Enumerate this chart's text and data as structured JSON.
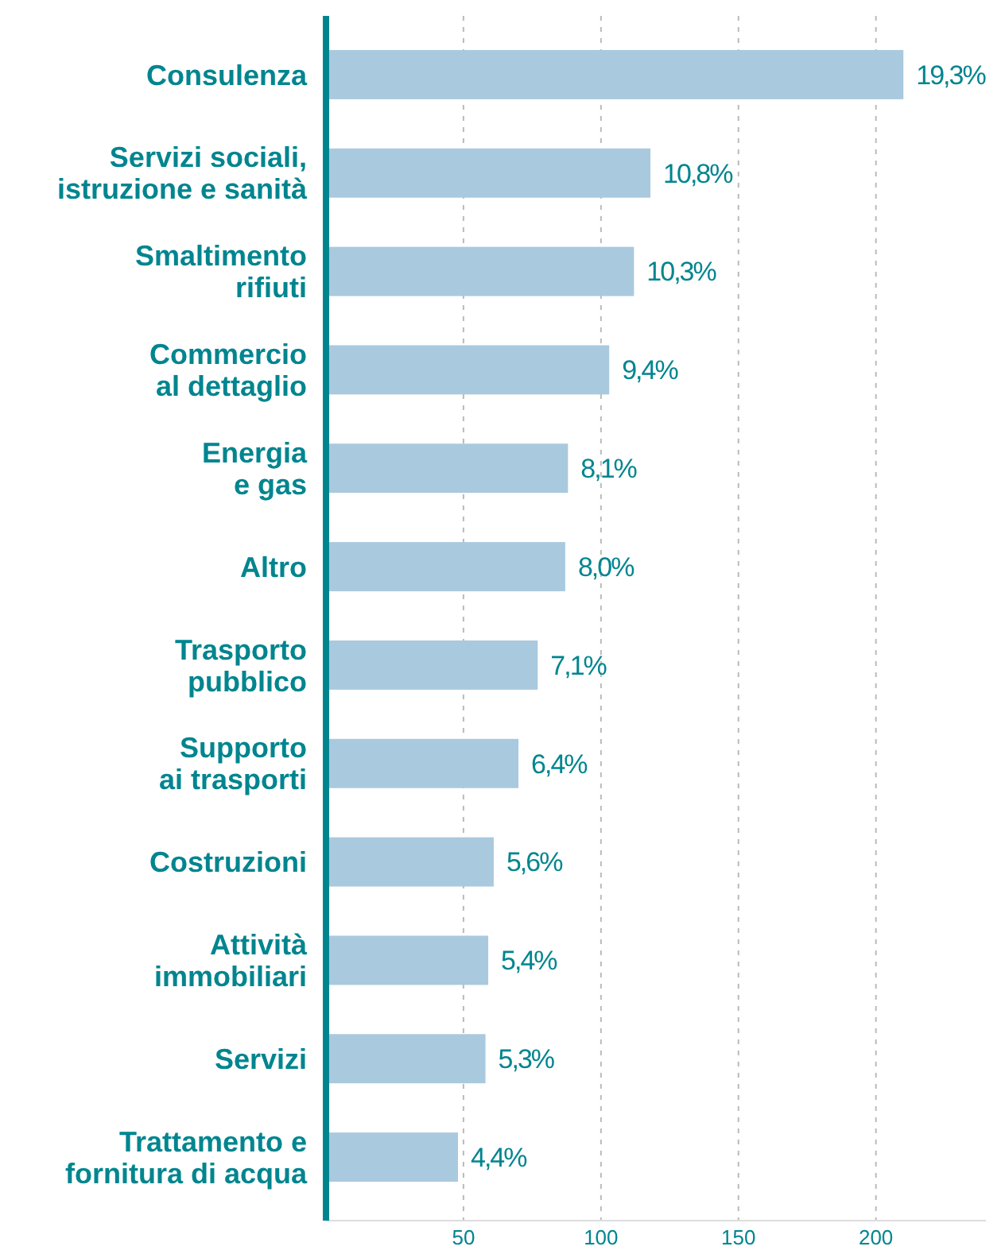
{
  "chart_data": {
    "type": "bar",
    "orientation": "horizontal",
    "categories": [
      "Consulenza",
      "Servizi sociali,\nistruzione e sanità",
      "Smaltimento\nrifiuti",
      "Commercio\nal dettaglio",
      "Energia\ne gas",
      "Altro",
      "Trasporto\npubblico",
      "Supporto\nai trasporti",
      "Costruzioni",
      "Attività\nimmobiliari",
      "Servizi",
      "Trattamento e\nfornitura di acqua"
    ],
    "values": [
      210,
      118,
      112,
      103,
      88,
      87,
      77,
      70,
      61,
      59,
      58,
      48
    ],
    "annotations": [
      {
        "text": "19,3%",
        "x": 210,
        "y": "Consulenza"
      },
      {
        "text": "10,8%",
        "x": 118,
        "y": "Servizi sociali,\nistruzione e sanità"
      },
      {
        "text": "10,3%",
        "x": 112,
        "y": "Smaltimento\nrifiuti"
      },
      {
        "text": "9,4%",
        "x": 103,
        "y": "Commercio\nal dettaglio"
      },
      {
        "text": "8,1%",
        "x": 88,
        "y": "Energia\ne gas"
      },
      {
        "text": "8,0%",
        "x": 87,
        "y": "Altro"
      },
      {
        "text": "7,1%",
        "x": 77,
        "y": "Trasporto\npubblico"
      },
      {
        "text": "6,4%",
        "x": 70,
        "y": "Supporto\nai trasporti"
      },
      {
        "text": "5,6%",
        "x": 61,
        "y": "Costruzioni"
      },
      {
        "text": "5,4%",
        "x": 59,
        "y": "Attività\nimmobiliari"
      },
      {
        "text": "5,3%",
        "x": 58,
        "y": "Servizi"
      },
      {
        "text": "4,4%",
        "x": 48,
        "y": "Trattamento e\nfornitura di acqua"
      }
    ],
    "color": "#a9c9de",
    "xlim": [
      0,
      240
    ],
    "xticks": [
      50,
      100,
      150,
      200
    ],
    "grid": "x"
  }
}
